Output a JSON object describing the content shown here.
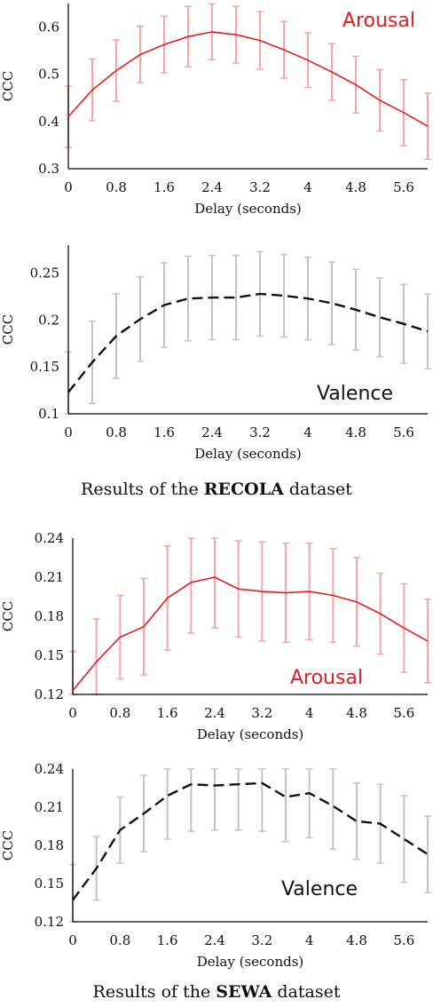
{
  "captions": {
    "recola": {
      "prefix": "Results of the ",
      "bold": "RECOLA",
      "suffix": " dataset"
    },
    "sewa": {
      "prefix": "Results of the ",
      "bold": "SEWA",
      "suffix": " dataset"
    }
  },
  "chart_data": [
    {
      "type": "line",
      "name": "recola-arousal",
      "annotation": "Arousal",
      "xlabel": "Delay (seconds)",
      "ylabel": "CCC",
      "xlim": [
        0,
        6
      ],
      "ylim": [
        0.3,
        0.65
      ],
      "xticks": [
        "0",
        "0.8",
        "1.6",
        "2.4",
        "3.2",
        "4",
        "4.8",
        "5.6"
      ],
      "xtick_values": [
        0,
        0.8,
        1.6,
        2.4,
        3.2,
        4,
        4.8,
        5.6
      ],
      "yticks": [
        "0.3",
        "0.4",
        "0.5",
        "0.6"
      ],
      "ytick_values": [
        0.3,
        0.4,
        0.5,
        0.6
      ],
      "line_color": "#e02020",
      "error_color": "#f4a6a6",
      "dashed": false,
      "annotation_color": "#e02020",
      "x": [
        0,
        0.4,
        0.8,
        1.2,
        1.6,
        2.0,
        2.4,
        2.8,
        3.2,
        3.6,
        4.0,
        4.4,
        4.8,
        5.2,
        5.6,
        6.0
      ],
      "y": [
        0.41,
        0.467,
        0.508,
        0.542,
        0.563,
        0.58,
        0.59,
        0.584,
        0.572,
        0.552,
        0.53,
        0.505,
        0.478,
        0.445,
        0.419,
        0.39
      ],
      "err": [
        0.065,
        0.065,
        0.065,
        0.06,
        0.06,
        0.064,
        0.059,
        0.06,
        0.061,
        0.06,
        0.058,
        0.06,
        0.06,
        0.065,
        0.07,
        0.07
      ]
    },
    {
      "type": "line",
      "name": "recola-valence",
      "annotation": "Valence",
      "xlabel": "Delay (seconds)",
      "ylabel": "CCC",
      "xlim": [
        0,
        6
      ],
      "ylim": [
        0.1,
        0.28
      ],
      "xticks": [
        "0",
        "0.8",
        "1.6",
        "2.4",
        "3.2",
        "4",
        "4.8",
        "5.6"
      ],
      "xtick_values": [
        0,
        0.8,
        1.6,
        2.4,
        3.2,
        4,
        4.8,
        5.6
      ],
      "yticks": [
        "0.1",
        "0.15",
        "0.2",
        "0.25"
      ],
      "ytick_values": [
        0.1,
        0.15,
        0.2,
        0.25
      ],
      "line_color": "#111111",
      "error_color": "#c4c4c4",
      "dashed": true,
      "annotation_color": "#111111",
      "x": [
        0,
        0.4,
        0.8,
        1.2,
        1.6,
        2.0,
        2.4,
        2.8,
        3.2,
        3.6,
        4.0,
        4.4,
        4.8,
        5.2,
        5.6,
        6.0
      ],
      "y": [
        0.123,
        0.155,
        0.183,
        0.201,
        0.216,
        0.223,
        0.224,
        0.224,
        0.228,
        0.226,
        0.223,
        0.218,
        0.211,
        0.203,
        0.196,
        0.188
      ],
      "err": [
        0.043,
        0.044,
        0.045,
        0.045,
        0.045,
        0.045,
        0.045,
        0.045,
        0.045,
        0.044,
        0.044,
        0.044,
        0.043,
        0.042,
        0.042,
        0.04
      ]
    },
    {
      "type": "line",
      "name": "sewa-arousal",
      "annotation": "Arousal",
      "xlabel": "Delay (seconds)",
      "ylabel": "CCC",
      "xlim": [
        0,
        6
      ],
      "ylim": [
        0.12,
        0.24
      ],
      "xticks": [
        "0",
        "0.8",
        "1.6",
        "2.4",
        "3.2",
        "4",
        "4.8",
        "5.6"
      ],
      "xtick_values": [
        0,
        0.8,
        1.6,
        2.4,
        3.2,
        4,
        4.8,
        5.6
      ],
      "yticks": [
        "0.12",
        "0.15",
        "0.18",
        "0.21",
        "0.24"
      ],
      "ytick_values": [
        0.12,
        0.15,
        0.18,
        0.21,
        0.24
      ],
      "line_color": "#e02020",
      "error_color": "#f4a6a6",
      "dashed": false,
      "annotation_color": "#e02020",
      "x": [
        0,
        0.4,
        0.8,
        1.2,
        1.6,
        2.0,
        2.4,
        2.8,
        3.2,
        3.6,
        4.0,
        4.4,
        4.8,
        5.2,
        5.6,
        6.0
      ],
      "y": [
        0.123,
        0.145,
        0.164,
        0.172,
        0.194,
        0.206,
        0.21,
        0.201,
        0.199,
        0.198,
        0.199,
        0.196,
        0.191,
        0.182,
        0.171,
        0.161
      ],
      "err": [
        0.03,
        0.033,
        0.032,
        0.037,
        0.04,
        0.039,
        0.039,
        0.037,
        0.038,
        0.038,
        0.037,
        0.036,
        0.034,
        0.031,
        0.034,
        0.032
      ]
    },
    {
      "type": "line",
      "name": "sewa-valence",
      "annotation": "Valence",
      "xlabel": "Delay (seconds)",
      "ylabel": "CCC",
      "xlim": [
        0,
        6
      ],
      "ylim": [
        0.12,
        0.24
      ],
      "xticks": [
        "0",
        "0.8",
        "1.6",
        "2.4",
        "3.2",
        "4",
        "4.8",
        "5.6"
      ],
      "xtick_values": [
        0,
        0.8,
        1.6,
        2.4,
        3.2,
        4,
        4.8,
        5.6
      ],
      "yticks": [
        "0.12",
        "0.15",
        "0.18",
        "0.21",
        "0.24"
      ],
      "ytick_values": [
        0.12,
        0.15,
        0.18,
        0.21,
        0.24
      ],
      "line_color": "#111111",
      "error_color": "#c4c4c4",
      "dashed": true,
      "annotation_color": "#111111",
      "x": [
        0,
        0.4,
        0.8,
        1.2,
        1.6,
        2.0,
        2.4,
        2.8,
        3.2,
        3.6,
        4.0,
        4.4,
        4.8,
        5.2,
        5.6,
        6.0
      ],
      "y": [
        0.137,
        0.162,
        0.192,
        0.205,
        0.219,
        0.228,
        0.227,
        0.228,
        0.229,
        0.218,
        0.221,
        0.211,
        0.199,
        0.197,
        0.185,
        0.173
      ],
      "err": [
        0.028,
        0.025,
        0.026,
        0.03,
        0.034,
        0.037,
        0.035,
        0.036,
        0.038,
        0.035,
        0.035,
        0.034,
        0.03,
        0.031,
        0.034,
        0.03
      ]
    }
  ]
}
